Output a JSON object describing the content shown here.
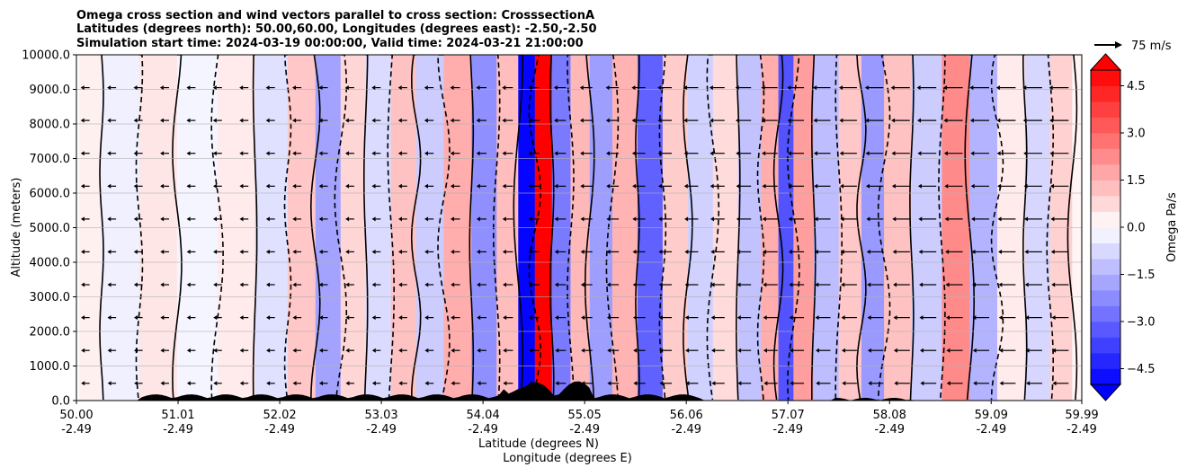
{
  "chart_data": {
    "type": "heatmap",
    "title_lines": [
      "Omega cross section and wind vectors parallel to cross section: CrosssectionA",
      "Latitudes (degrees north): 50.00,60.00, Longitudes (degrees east): -2.50,-2.50",
      "Simulation start time: 2024-03-19 00:00:00, Valid time: 2024-03-21 21:00:00"
    ],
    "ylabel": "Altitude (meters)",
    "xlabel_lat": "Latitude (degrees N)",
    "xlabel_lon": "Longitude (degrees E)",
    "ylim": [
      0,
      10000
    ],
    "y_ticks": [
      {
        "value": 0,
        "label": "0.0"
      },
      {
        "value": 1000,
        "label": "1000.0"
      },
      {
        "value": 2000,
        "label": "2000.0"
      },
      {
        "value": 3000,
        "label": "3000.0"
      },
      {
        "value": 4000,
        "label": "4000.0"
      },
      {
        "value": 5000,
        "label": "5000.0"
      },
      {
        "value": 6000,
        "label": "6000.0"
      },
      {
        "value": 7000,
        "label": "7000.0"
      },
      {
        "value": 8000,
        "label": "8000.0"
      },
      {
        "value": 9000,
        "label": "9000.0"
      },
      {
        "value": 10000,
        "label": "10000.0"
      }
    ],
    "xlim": [
      50.0,
      59.99
    ],
    "x_ticks": [
      {
        "value": 50.0,
        "lat": "50.00",
        "lon": "-2.49"
      },
      {
        "value": 51.01,
        "lat": "51.01",
        "lon": "-2.49"
      },
      {
        "value": 52.02,
        "lat": "52.02",
        "lon": "-2.49"
      },
      {
        "value": 53.03,
        "lat": "53.03",
        "lon": "-2.49"
      },
      {
        "value": 54.04,
        "lat": "54.04",
        "lon": "-2.49"
      },
      {
        "value": 55.05,
        "lat": "55.05",
        "lon": "-2.49"
      },
      {
        "value": 56.06,
        "lat": "56.06",
        "lon": "-2.49"
      },
      {
        "value": 57.07,
        "lat": "57.07",
        "lon": "-2.49"
      },
      {
        "value": 58.08,
        "lat": "58.08",
        "lon": "-2.49"
      },
      {
        "value": 59.09,
        "lat": "59.09",
        "lon": "-2.49"
      },
      {
        "value": 59.99,
        "lat": "59.99",
        "lon": "-2.49"
      }
    ],
    "grid": "horizontal",
    "colorbar": {
      "label": "Omega Pa/s",
      "min": -5.0,
      "max": 5.0,
      "extend": "both",
      "ticks": [
        {
          "value": 4.5,
          "label": "4.5"
        },
        {
          "value": 3.0,
          "label": "3.0"
        },
        {
          "value": 1.5,
          "label": "1.5"
        },
        {
          "value": 0.0,
          "label": "0.0"
        },
        {
          "value": -1.5,
          "label": "−1.5"
        },
        {
          "value": -3.0,
          "label": "−3.0"
        },
        {
          "value": -4.5,
          "label": "−4.5"
        }
      ]
    },
    "quiver_key": {
      "label": "75 m/s",
      "speed": 75
    },
    "omega_bands": [
      {
        "lat": 50.05,
        "omega": 0.3
      },
      {
        "lat": 50.45,
        "omega": -0.3
      },
      {
        "lat": 50.8,
        "omega": 0.5
      },
      {
        "lat": 51.2,
        "omega": -0.2
      },
      {
        "lat": 51.6,
        "omega": 0.4
      },
      {
        "lat": 51.95,
        "omega": -0.6
      },
      {
        "lat": 52.25,
        "omega": 1.1
      },
      {
        "lat": 52.5,
        "omega": -1.8
      },
      {
        "lat": 52.75,
        "omega": 0.8
      },
      {
        "lat": 53.0,
        "omega": -0.7
      },
      {
        "lat": 53.25,
        "omega": 1.2
      },
      {
        "lat": 53.5,
        "omega": -1.0
      },
      {
        "lat": 53.8,
        "omega": 1.6
      },
      {
        "lat": 54.05,
        "omega": -2.2
      },
      {
        "lat": 54.3,
        "omega": 1.3
      },
      {
        "lat": 54.48,
        "omega": -4.9
      },
      {
        "lat": 54.63,
        "omega": 5.0
      },
      {
        "lat": 54.82,
        "omega": -2.6
      },
      {
        "lat": 55.0,
        "omega": 1.4
      },
      {
        "lat": 55.2,
        "omega": -1.9
      },
      {
        "lat": 55.45,
        "omega": 1.5
      },
      {
        "lat": 55.7,
        "omega": -3.1
      },
      {
        "lat": 55.95,
        "omega": 1.0
      },
      {
        "lat": 56.2,
        "omega": -0.9
      },
      {
        "lat": 56.45,
        "omega": 0.7
      },
      {
        "lat": 56.7,
        "omega": -1.2
      },
      {
        "lat": 56.9,
        "omega": 1.6
      },
      {
        "lat": 57.05,
        "omega": -3.4
      },
      {
        "lat": 57.2,
        "omega": 1.9
      },
      {
        "lat": 57.45,
        "omega": -1.3
      },
      {
        "lat": 57.7,
        "omega": 1.1
      },
      {
        "lat": 57.9,
        "omega": -2.0
      },
      {
        "lat": 58.15,
        "omega": 1.2
      },
      {
        "lat": 58.45,
        "omega": -1.0
      },
      {
        "lat": 58.75,
        "omega": 2.3
      },
      {
        "lat": 59.0,
        "omega": -1.5
      },
      {
        "lat": 59.3,
        "omega": 0.4
      },
      {
        "lat": 59.55,
        "omega": -0.8
      },
      {
        "lat": 59.8,
        "omega": 0.9
      },
      {
        "lat": 59.99,
        "omega": 0.2
      }
    ]
  },
  "colors": {
    "omega_positive": "#ff0000",
    "omega_negative": "#0000ff",
    "omega_zero": "#ffffff",
    "terrain": "#000000",
    "grid": "#b0b0b0"
  }
}
